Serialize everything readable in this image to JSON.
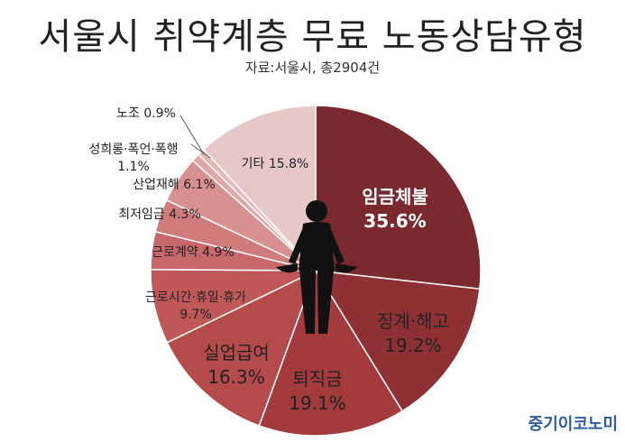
{
  "title": "서울시 취약계층 무료 노동상담유형",
  "subtitle": "자료:서울시, 총2904건",
  "brand": "중기이코노미",
  "chart_data": {
    "type": "pie",
    "title": "서울시 취약계층 무료 노동상담유형",
    "subtitle": "자료:서울시, 총2904건",
    "start": "12 o'clock, clockwise",
    "slices": [
      {
        "label": "임금체불",
        "value": 35.6,
        "value_text": "35.6%",
        "color": "#7a2a2e",
        "text_color": "#ffffff",
        "bold": true
      },
      {
        "label": "징계·해고",
        "value": 19.2,
        "value_text": "19.2%",
        "color": "#8f3134",
        "text_color": "#222222"
      },
      {
        "label": "퇴직금",
        "value": 19.1,
        "value_text": "19.1%",
        "color": "#a33a3c",
        "text_color": "#222222"
      },
      {
        "label": "실업급여",
        "value": 16.3,
        "value_text": "16.3%",
        "color": "#b44a4a",
        "text_color": "#222222"
      },
      {
        "label": "근로시간·휴일·휴가",
        "value": 9.7,
        "value_text": "9.7%",
        "color": "#c0585a",
        "text_color": "#222222"
      },
      {
        "label": "근로계약",
        "value": 4.9,
        "value_text": "4.9%",
        "color": "#c9686a",
        "text_color": "#222222"
      },
      {
        "label": "최저임금",
        "value": 4.3,
        "value_text": "4.3%",
        "color": "#d07c7c",
        "text_color": "#222222"
      },
      {
        "label": "산업재해",
        "value": 6.1,
        "value_text": "6.1%",
        "color": "#d99090",
        "text_color": "#222222"
      },
      {
        "label": "성희롱·폭언·폭행",
        "value": 1.1,
        "value_text": "1.1%",
        "color": "#e0a6a6",
        "text_color": "#222222"
      },
      {
        "label": "노조",
        "value": 0.9,
        "value_text": "0.9%",
        "color": "#e8b8b8",
        "text_color": "#222222"
      },
      {
        "label": "기타",
        "value": 15.8,
        "value_text": "15.8%",
        "color": "#e7c8c8",
        "text_color": "#222222"
      }
    ]
  }
}
